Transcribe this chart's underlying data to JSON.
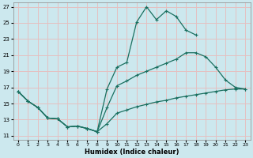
{
  "bg_color": "#cce8ee",
  "grid_color": "#c8e0e6",
  "line_color": "#1a7060",
  "xlabel": "Humidex (Indice chaleur)",
  "xlim": [
    -0.5,
    23.5
  ],
  "ylim": [
    10.5,
    27.5
  ],
  "yticks": [
    11,
    13,
    15,
    17,
    19,
    21,
    23,
    25,
    27
  ],
  "xticks": [
    0,
    1,
    2,
    3,
    4,
    5,
    6,
    7,
    8,
    9,
    10,
    11,
    12,
    13,
    14,
    15,
    16,
    17,
    18,
    19,
    20,
    21,
    22,
    23
  ],
  "curves": [
    {
      "x": [
        0,
        1,
        2,
        3,
        4,
        5,
        6,
        7,
        8,
        9,
        10,
        11,
        12,
        13,
        14,
        15,
        16,
        17,
        18
      ],
      "y": [
        16.5,
        15.3,
        14.5,
        13.2,
        13.1,
        12.1,
        12.2,
        11.9,
        11.5,
        16.8,
        19.5,
        20.1,
        25.1,
        27.0,
        25.4,
        26.5,
        25.8,
        24.1,
        23.5
      ]
    },
    {
      "x": [
        0,
        1,
        2,
        3,
        4,
        5,
        6,
        7,
        8,
        9,
        10,
        11,
        12,
        13,
        14,
        15,
        16,
        17,
        18,
        19,
        20,
        21,
        22,
        23
      ],
      "y": [
        16.5,
        15.3,
        14.5,
        13.2,
        13.1,
        12.1,
        12.2,
        11.9,
        11.5,
        14.5,
        17.2,
        17.8,
        18.5,
        19.0,
        19.5,
        20.0,
        20.5,
        21.3,
        21.3,
        20.8,
        19.5,
        17.9,
        17.0,
        16.8
      ]
    },
    {
      "x": [
        0,
        1,
        2,
        3,
        4,
        5,
        6,
        7,
        8,
        9,
        10,
        11,
        12,
        13,
        14,
        15,
        16,
        17,
        18,
        19,
        20,
        21,
        22,
        23
      ],
      "y": [
        16.5,
        15.3,
        14.5,
        13.2,
        13.1,
        12.1,
        12.2,
        11.9,
        11.5,
        12.5,
        13.8,
        14.2,
        14.6,
        14.9,
        15.2,
        15.4,
        15.7,
        15.9,
        16.1,
        16.3,
        16.5,
        16.7,
        16.8,
        16.8
      ]
    }
  ]
}
